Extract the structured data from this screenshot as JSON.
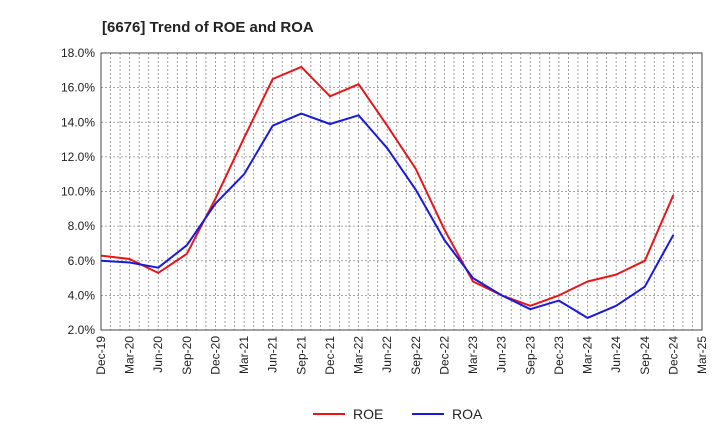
{
  "chart_data": {
    "type": "line",
    "title": "[6676]  Trend of ROE and ROA",
    "xlabel": "",
    "ylabel": "",
    "categories": [
      "Dec-19",
      "Mar-20",
      "Jun-20",
      "Sep-20",
      "Dec-20",
      "Mar-21",
      "Jun-21",
      "Sep-21",
      "Dec-21",
      "Mar-22",
      "Jun-22",
      "Sep-22",
      "Dec-22",
      "Mar-23",
      "Jun-23",
      "Sep-23",
      "Dec-23",
      "Mar-24",
      "Jun-24",
      "Sep-24",
      "Dec-24",
      "Mar-25"
    ],
    "ylim": [
      2.0,
      18.0
    ],
    "yticks": [
      "2.0%",
      "4.0%",
      "6.0%",
      "8.0%",
      "10.0%",
      "12.0%",
      "14.0%",
      "16.0%",
      "18.0%"
    ],
    "ytick_values": [
      2,
      4,
      6,
      8,
      10,
      12,
      14,
      16,
      18
    ],
    "grid": true,
    "legend_position": "bottom-center",
    "series": [
      {
        "name": "ROE",
        "color": "#e8161b",
        "values": [
          6.3,
          6.1,
          5.3,
          6.4,
          9.6,
          13.1,
          16.5,
          17.2,
          15.5,
          16.2,
          13.8,
          11.3,
          7.8,
          4.8,
          4.0,
          3.4,
          4.0,
          4.8,
          5.2,
          6.0,
          9.8,
          null
        ]
      },
      {
        "name": "ROA",
        "color": "#1a1adc",
        "values": [
          6.0,
          5.9,
          5.6,
          6.9,
          9.3,
          11.0,
          13.8,
          14.5,
          13.9,
          14.4,
          12.5,
          10.1,
          7.2,
          5.0,
          4.0,
          3.2,
          3.7,
          2.7,
          3.4,
          4.5,
          7.5,
          null
        ]
      }
    ]
  }
}
